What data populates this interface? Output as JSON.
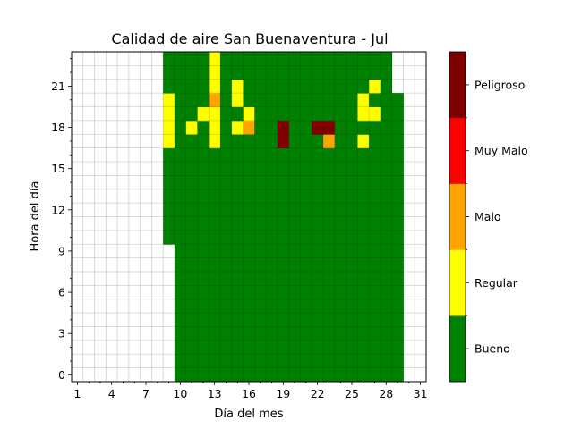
{
  "chart_data": {
    "type": "heatmap",
    "title": "Calidad de aire San Buenaventura - Jul",
    "xlabel": "Día del mes",
    "ylabel": "Hora del día",
    "x_range": [
      1,
      31
    ],
    "y_range": [
      0,
      23
    ],
    "x_ticks": [
      1,
      4,
      7,
      10,
      13,
      16,
      19,
      22,
      25,
      28,
      31
    ],
    "y_ticks": [
      0,
      3,
      6,
      9,
      12,
      15,
      18,
      21
    ],
    "grid": true,
    "empty_color": "#ffffff",
    "legend": {
      "type": "colorbar",
      "position": "right",
      "levels": [
        {
          "level": 0,
          "label": "Bueno",
          "color": "#008000"
        },
        {
          "level": 1,
          "label": "Regular",
          "color": "#ffff00"
        },
        {
          "level": 2,
          "label": "Malo",
          "color": "#ffa500"
        },
        {
          "level": 3,
          "label": "Muy Malo",
          "color": "#ff0000"
        },
        {
          "level": 4,
          "label": "Peligroso",
          "color": "#800000"
        }
      ]
    },
    "columns": [
      {
        "day": 9,
        "from_hour": 10,
        "to_hour": 23
      },
      {
        "day": 10,
        "from_hour": 0,
        "to_hour": 23
      },
      {
        "day": 11,
        "from_hour": 0,
        "to_hour": 23
      },
      {
        "day": 12,
        "from_hour": 0,
        "to_hour": 23
      },
      {
        "day": 13,
        "from_hour": 0,
        "to_hour": 23
      },
      {
        "day": 14,
        "from_hour": 0,
        "to_hour": 23
      },
      {
        "day": 15,
        "from_hour": 0,
        "to_hour": 23
      },
      {
        "day": 16,
        "from_hour": 0,
        "to_hour": 23
      },
      {
        "day": 17,
        "from_hour": 0,
        "to_hour": 23
      },
      {
        "day": 18,
        "from_hour": 0,
        "to_hour": 23
      },
      {
        "day": 19,
        "from_hour": 0,
        "to_hour": 23
      },
      {
        "day": 20,
        "from_hour": 0,
        "to_hour": 23
      },
      {
        "day": 21,
        "from_hour": 0,
        "to_hour": 23
      },
      {
        "day": 22,
        "from_hour": 0,
        "to_hour": 23
      },
      {
        "day": 23,
        "from_hour": 0,
        "to_hour": 23
      },
      {
        "day": 24,
        "from_hour": 0,
        "to_hour": 23
      },
      {
        "day": 25,
        "from_hour": 0,
        "to_hour": 23
      },
      {
        "day": 26,
        "from_hour": 0,
        "to_hour": 23
      },
      {
        "day": 27,
        "from_hour": 0,
        "to_hour": 23
      },
      {
        "day": 28,
        "from_hour": 0,
        "to_hour": 23
      },
      {
        "day": 29,
        "from_hour": 0,
        "to_hour": 20
      }
    ],
    "default_level": 0,
    "non_default_cells": [
      {
        "day": 9,
        "hour": 17,
        "level": 1
      },
      {
        "day": 9,
        "hour": 18,
        "level": 1
      },
      {
        "day": 9,
        "hour": 19,
        "level": 1
      },
      {
        "day": 9,
        "hour": 20,
        "level": 1
      },
      {
        "day": 11,
        "hour": 18,
        "level": 1
      },
      {
        "day": 12,
        "hour": 19,
        "level": 1
      },
      {
        "day": 13,
        "hour": 17,
        "level": 1
      },
      {
        "day": 13,
        "hour": 18,
        "level": 1
      },
      {
        "day": 13,
        "hour": 19,
        "level": 1
      },
      {
        "day": 13,
        "hour": 20,
        "level": 2
      },
      {
        "day": 13,
        "hour": 21,
        "level": 1
      },
      {
        "day": 13,
        "hour": 22,
        "level": 1
      },
      {
        "day": 13,
        "hour": 23,
        "level": 1
      },
      {
        "day": 15,
        "hour": 18,
        "level": 1
      },
      {
        "day": 15,
        "hour": 20,
        "level": 1
      },
      {
        "day": 15,
        "hour": 21,
        "level": 1
      },
      {
        "day": 16,
        "hour": 18,
        "level": 2
      },
      {
        "day": 16,
        "hour": 19,
        "level": 1
      },
      {
        "day": 19,
        "hour": 17,
        "level": 4
      },
      {
        "day": 19,
        "hour": 18,
        "level": 4
      },
      {
        "day": 22,
        "hour": 18,
        "level": 4
      },
      {
        "day": 23,
        "hour": 17,
        "level": 2
      },
      {
        "day": 23,
        "hour": 18,
        "level": 4
      },
      {
        "day": 26,
        "hour": 17,
        "level": 1
      },
      {
        "day": 26,
        "hour": 19,
        "level": 1
      },
      {
        "day": 26,
        "hour": 20,
        "level": 1
      },
      {
        "day": 27,
        "hour": 19,
        "level": 1
      },
      {
        "day": 27,
        "hour": 21,
        "level": 1
      }
    ]
  }
}
